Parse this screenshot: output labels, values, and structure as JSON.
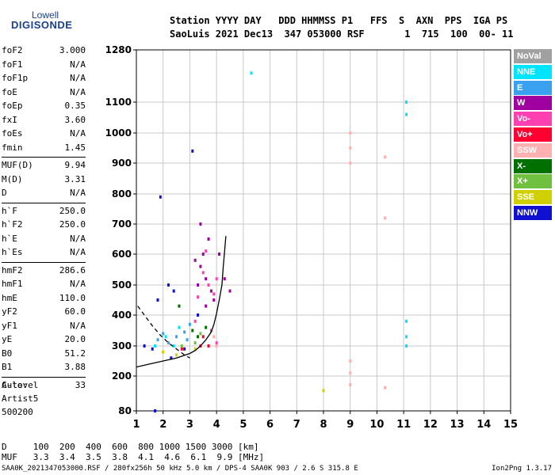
{
  "logo": {
    "line1": "Lowell",
    "line2": "DIGISONDE"
  },
  "header": {
    "line1": "Station YYYY DAY   DDD HHMMSS P1   FFS  S  AXN  PPS  IGA PS",
    "line2": "SaoLuis 2021 Dec13  347 053000 RSF       1  715  100  00- 11"
  },
  "params": [
    [
      {
        "label": "foF2",
        "value": "3.000"
      },
      {
        "label": "foF1",
        "value": "N/A"
      },
      {
        "label": "foF1p",
        "value": "N/A"
      },
      {
        "label": "foE",
        "value": "N/A"
      },
      {
        "label": "foEp",
        "value": "0.35"
      },
      {
        "label": "fxI",
        "value": "3.60"
      },
      {
        "label": "foEs",
        "value": "N/A"
      },
      {
        "label": "fmin",
        "value": "1.45"
      }
    ],
    [
      {
        "label": "MUF(D)",
        "value": "9.94"
      },
      {
        "label": "M(D)",
        "value": "3.31"
      },
      {
        "label": "D",
        "value": "N/A"
      }
    ],
    [
      {
        "label": "h`F",
        "value": "250.0"
      },
      {
        "label": "h`F2",
        "value": "250.0"
      },
      {
        "label": "h`E",
        "value": "N/A"
      },
      {
        "label": "h`Es",
        "value": "N/A"
      }
    ],
    [
      {
        "label": "hmF2",
        "value": "286.6"
      },
      {
        "label": "hmF1",
        "value": "N/A"
      },
      {
        "label": "hmE",
        "value": "110.0"
      },
      {
        "label": "yF2",
        "value": "60.0"
      },
      {
        "label": "yF1",
        "value": "N/A"
      },
      {
        "label": "yE",
        "value": "20.0"
      },
      {
        "label": "B0",
        "value": "51.2"
      },
      {
        "label": "B1",
        "value": "3.88"
      }
    ],
    [
      {
        "label": "C-level",
        "value": "33"
      }
    ]
  ],
  "auto": {
    "line1": "Auto:",
    "line2": "Artist5",
    "line3": "500200"
  },
  "legend": [
    {
      "label": "NoVal",
      "color": "#a0a0a0"
    },
    {
      "label": "NNE",
      "color": "#00e5ff"
    },
    {
      "label": "E",
      "color": "#3aa0f0"
    },
    {
      "label": "W",
      "color": "#a000a0"
    },
    {
      "label": "Vo-",
      "color": "#ff40b0"
    },
    {
      "label": "Vo+",
      "color": "#ff0030"
    },
    {
      "label": "SSW",
      "color": "#ffb0b0"
    },
    {
      "label": "X-",
      "color": "#007000"
    },
    {
      "label": "X+",
      "color": "#70c040"
    },
    {
      "label": "SSE",
      "color": "#d0d000"
    },
    {
      "label": "NNW",
      "color": "#1010d0"
    }
  ],
  "mufd": {
    "line1": "D     100  200  400  600  800 1000 1500 3000 [km]",
    "line2": "MUF   3.3  3.4  3.5  3.8  4.1  4.6  6.1  9.9 [MHz]"
  },
  "footer": {
    "left": "SAA0K_2021347053000.RSF / 280fx256h 50 kHz 5.0 km / DPS-4 SAA0K 903 / 2.6 S 315.8 E",
    "right": "Ion2Png 1.3.17"
  },
  "chart_data": {
    "type": "scatter",
    "title": "",
    "xlabel": "",
    "ylabel": "",
    "xlim": [
      1,
      15
    ],
    "ylim": [
      80,
      1280
    ],
    "x_ticks": [
      "1",
      "2",
      "3",
      "4",
      "5",
      "6",
      "7",
      "8",
      "9",
      "10",
      "11",
      "12",
      "13",
      "14",
      "15"
    ],
    "y_ticks": [
      "80",
      "200",
      "300",
      "400",
      "500",
      "600",
      "700",
      "800",
      "900",
      "1000",
      "1100",
      "1280"
    ],
    "y_tick_values": [
      80,
      200,
      300,
      400,
      500,
      600,
      700,
      800,
      900,
      1000,
      1100,
      1280
    ],
    "grid": true,
    "series": [
      {
        "name": "NNE",
        "color": "#00e5ff",
        "points": [
          [
            11.1,
            1100
          ],
          [
            11.1,
            1060
          ],
          [
            11.1,
            380
          ],
          [
            11.1,
            330
          ],
          [
            11.1,
            300
          ],
          [
            5.3,
            1200
          ],
          [
            1.7,
            300
          ],
          [
            2.1,
            330
          ],
          [
            2.4,
            300
          ],
          [
            2.6,
            360
          ]
        ]
      },
      {
        "name": "E",
        "color": "#3aa0f0",
        "points": [
          [
            1.8,
            320
          ],
          [
            2.0,
            340
          ],
          [
            2.2,
            310
          ],
          [
            2.5,
            330
          ],
          [
            2.8,
            345
          ],
          [
            3.0,
            370
          ],
          [
            2.9,
            320
          ]
        ]
      },
      {
        "name": "W",
        "color": "#a000a0",
        "points": [
          [
            3.4,
            560
          ],
          [
            3.6,
            520
          ],
          [
            3.8,
            480
          ],
          [
            3.5,
            600
          ],
          [
            3.3,
            500
          ],
          [
            3.9,
            450
          ],
          [
            4.1,
            600
          ],
          [
            4.3,
            520
          ],
          [
            3.7,
            650
          ],
          [
            3.2,
            580
          ],
          [
            4.5,
            480
          ],
          [
            3.4,
            700
          ],
          [
            3.6,
            430
          ]
        ]
      },
      {
        "name": "Vo-",
        "color": "#ff40b0",
        "points": [
          [
            3.5,
            540
          ],
          [
            3.7,
            500
          ],
          [
            3.9,
            470
          ],
          [
            4.0,
            520
          ],
          [
            3.6,
            610
          ],
          [
            3.3,
            460
          ],
          [
            3.2,
            380
          ],
          [
            3.8,
            350
          ],
          [
            4.0,
            310
          ]
        ]
      },
      {
        "name": "Vo+",
        "color": "#ff0030",
        "points": [
          [
            3.5,
            330
          ],
          [
            3.7,
            300
          ],
          [
            3.4,
            300
          ],
          [
            2.7,
            290
          ]
        ]
      },
      {
        "name": "SSW",
        "color": "#ffb0b0",
        "points": [
          [
            9.0,
            1000
          ],
          [
            9.0,
            950
          ],
          [
            9.0,
            900
          ],
          [
            9.0,
            250
          ],
          [
            9.0,
            210
          ],
          [
            9.0,
            170
          ],
          [
            10.3,
            920
          ],
          [
            10.3,
            720
          ],
          [
            10.3,
            160
          ],
          [
            4.0,
            300
          ],
          [
            3.9,
            330
          ]
        ]
      },
      {
        "name": "X-",
        "color": "#007000",
        "points": [
          [
            3.1,
            350
          ],
          [
            3.3,
            330
          ],
          [
            3.6,
            360
          ],
          [
            2.6,
            430
          ]
        ]
      },
      {
        "name": "X+",
        "color": "#70c040",
        "points": [
          [
            3.2,
            310
          ],
          [
            3.4,
            340
          ],
          [
            2.7,
            300
          ]
        ]
      },
      {
        "name": "SSE",
        "color": "#d0d000",
        "points": [
          [
            8.0,
            150
          ],
          [
            2.5,
            270
          ],
          [
            2.0,
            280
          ],
          [
            3.2,
            290
          ]
        ]
      },
      {
        "name": "NNW",
        "color": "#1010d0",
        "points": [
          [
            3.1,
            940
          ],
          [
            1.9,
            790
          ],
          [
            2.2,
            500
          ],
          [
            1.8,
            450
          ],
          [
            2.4,
            480
          ],
          [
            1.3,
            300
          ],
          [
            1.6,
            290
          ],
          [
            1.7,
            80
          ],
          [
            2.3,
            260
          ],
          [
            2.8,
            290
          ],
          [
            3.3,
            400
          ]
        ]
      }
    ],
    "curves": [
      {
        "name": "",
        "style": "solid",
        "points": [
          [
            1.0,
            230
          ],
          [
            1.5,
            240
          ],
          [
            2.0,
            250
          ],
          [
            2.5,
            260
          ],
          [
            3.0,
            275
          ],
          [
            3.2,
            285
          ],
          [
            3.4,
            300
          ],
          [
            3.6,
            320
          ],
          [
            3.8,
            345
          ],
          [
            3.9,
            370
          ],
          [
            4.0,
            405
          ],
          [
            4.1,
            450
          ],
          [
            4.2,
            500
          ],
          [
            4.25,
            560
          ],
          [
            4.3,
            610
          ],
          [
            4.35,
            660
          ]
        ]
      },
      {
        "name": "",
        "style": "dashed",
        "points": [
          [
            1.05,
            430
          ],
          [
            1.3,
            400
          ],
          [
            1.6,
            365
          ],
          [
            1.9,
            335
          ],
          [
            2.2,
            310
          ],
          [
            2.5,
            290
          ],
          [
            2.8,
            270
          ],
          [
            3.0,
            260
          ]
        ]
      }
    ]
  }
}
